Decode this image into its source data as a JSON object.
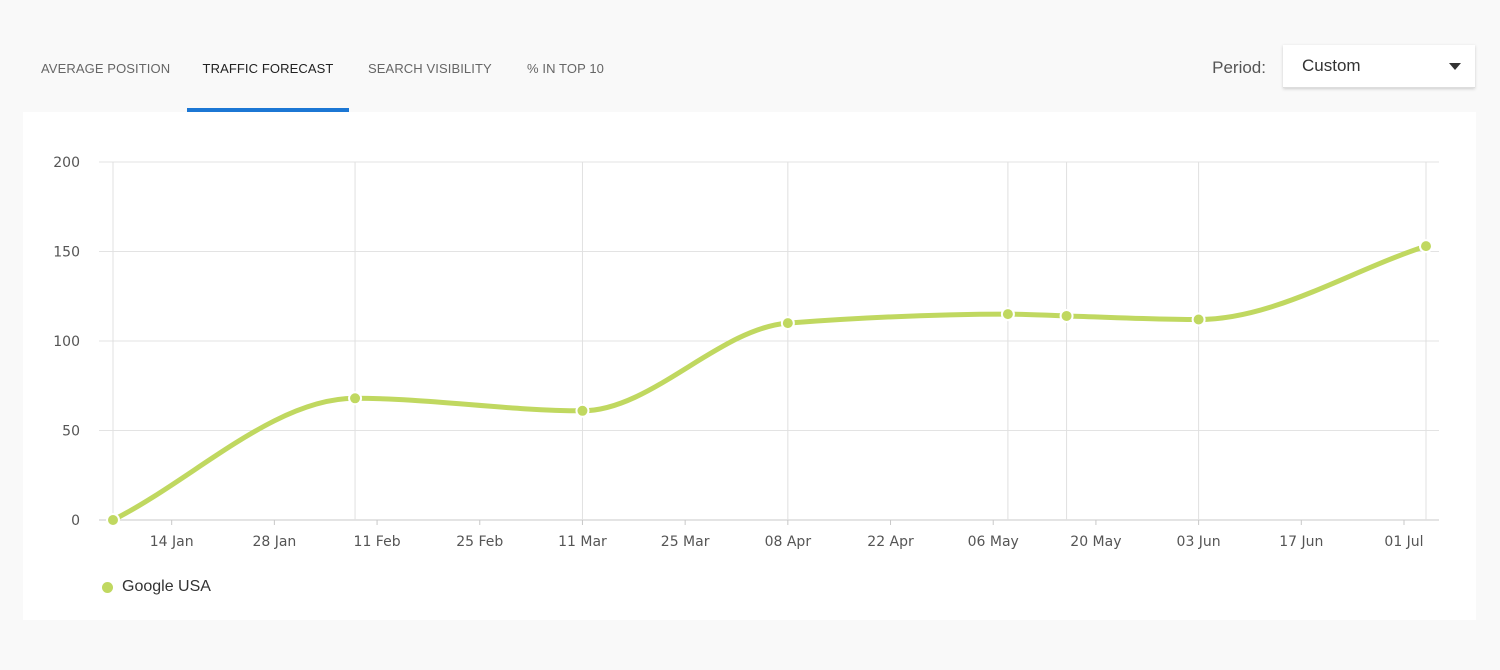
{
  "tabs": [
    {
      "label": "AVERAGE POSITION",
      "active": false
    },
    {
      "label": "TRAFFIC FORECAST",
      "active": true
    },
    {
      "label": "SEARCH VISIBILITY",
      "active": false
    },
    {
      "label": "% IN TOP 10",
      "active": false
    }
  ],
  "period": {
    "label": "Period:",
    "value": "Custom"
  },
  "colors": {
    "accent": "#1c77d4",
    "series": "#c0d860"
  },
  "chart_data": {
    "type": "line",
    "title": "",
    "xlabel": "",
    "ylabel": "",
    "ylim": [
      0,
      200
    ],
    "yticks": [
      0,
      50,
      100,
      150,
      200
    ],
    "xticks": [
      "14 Jan",
      "28 Jan",
      "11 Feb",
      "25 Feb",
      "11 Mar",
      "25 Mar",
      "08 Apr",
      "22 Apr",
      "06 May",
      "20 May",
      "03 Jun",
      "17 Jun",
      "01 Jul"
    ],
    "grid": true,
    "legend_position": "bottom-left",
    "series": [
      {
        "name": "Google USA",
        "color": "#c0d860",
        "points": [
          {
            "x": "2019-01-06",
            "y": 0
          },
          {
            "x": "2019-02-08",
            "y": 68
          },
          {
            "x": "2019-03-11",
            "y": 61
          },
          {
            "x": "2019-04-08",
            "y": 110
          },
          {
            "x": "2019-05-08",
            "y": 115
          },
          {
            "x": "2019-05-16",
            "y": 114
          },
          {
            "x": "2019-06-03",
            "y": 112
          },
          {
            "x": "2019-07-04",
            "y": 153
          }
        ]
      }
    ]
  }
}
